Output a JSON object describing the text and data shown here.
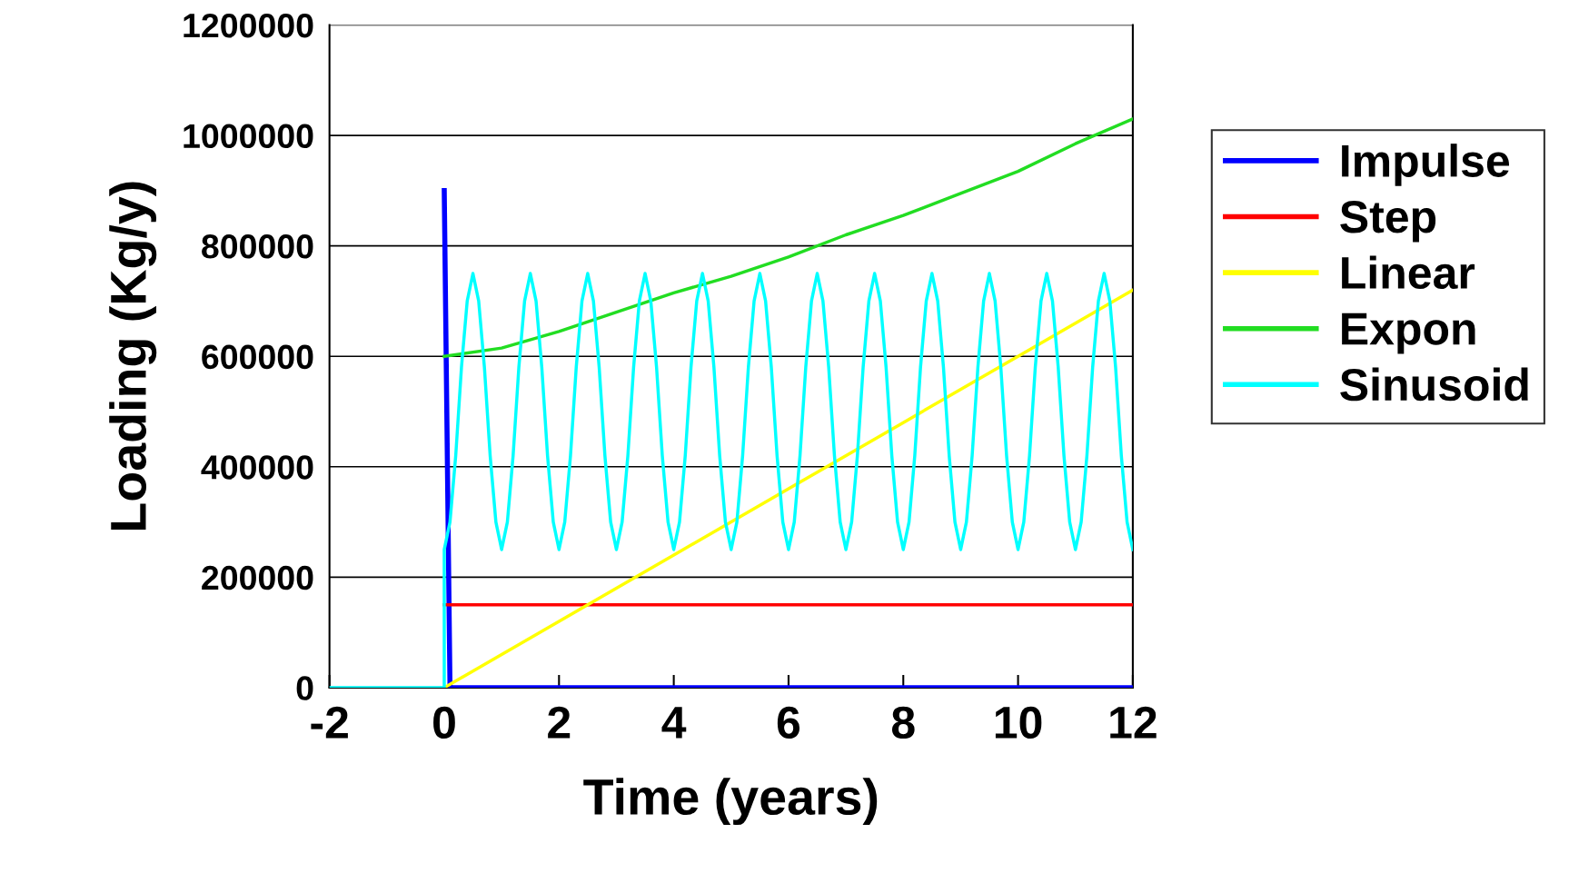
{
  "chart_data": {
    "type": "line",
    "xlabel": "Time (years)",
    "ylabel": "Loading (Kg/y)",
    "xlim": [
      -2,
      12
    ],
    "xticks": [
      -2,
      0,
      2,
      4,
      6,
      8,
      10,
      12
    ],
    "ylim": [
      0,
      1200000
    ],
    "yticks": [
      0,
      200000,
      400000,
      600000,
      800000,
      1000000,
      1200000
    ],
    "grid": "y",
    "legend": "right",
    "series": [
      {
        "name": "Impulse",
        "color": "#0000ff",
        "x": [
          0,
          0.1,
          12
        ],
        "values": [
          900000,
          0,
          0
        ]
      },
      {
        "name": "Step",
        "color": "#ff0000",
        "x": [
          0,
          12
        ],
        "values": [
          150000,
          150000
        ]
      },
      {
        "name": "Linear",
        "color": "#ffff00",
        "x": [
          0,
          2,
          4,
          6,
          8,
          10,
          12
        ],
        "values": [
          0,
          120000,
          240000,
          360000,
          480000,
          600000,
          720000
        ]
      },
      {
        "name": "Expon",
        "color": "#22dd22",
        "x": [
          0,
          1,
          2,
          3,
          4,
          5,
          6,
          7,
          8,
          9,
          10,
          11,
          12
        ],
        "values": [
          600000,
          615000,
          645000,
          680000,
          715000,
          745000,
          780000,
          820000,
          855000,
          895000,
          935000,
          985000,
          1030000
        ]
      },
      {
        "name": "Sinusoid",
        "color": "#00ffff",
        "x": [
          -2,
          0,
          0,
          0.1,
          0.2,
          0.3,
          0.4,
          0.5,
          0.6,
          0.7,
          0.8,
          0.9,
          1,
          1.1,
          1.2,
          1.3,
          1.4,
          1.5,
          1.6,
          1.7,
          1.8,
          1.9,
          2,
          2.1,
          2.2,
          2.3,
          2.4,
          2.5,
          2.6,
          2.7,
          2.8,
          2.9,
          3,
          3.1,
          3.2,
          3.3,
          3.4,
          3.5,
          3.6,
          3.7,
          3.8,
          3.9,
          4,
          4.1,
          4.2,
          4.3,
          4.4,
          4.5,
          4.6,
          4.7,
          4.8,
          4.9,
          5,
          5.1,
          5.2,
          5.3,
          5.4,
          5.5,
          5.6,
          5.7,
          5.8,
          5.9,
          6,
          6.1,
          6.2,
          6.3,
          6.4,
          6.5,
          6.6,
          6.7,
          6.8,
          6.9,
          7,
          7.1,
          7.2,
          7.3,
          7.4,
          7.5,
          7.6,
          7.7,
          7.8,
          7.9,
          8,
          8.1,
          8.2,
          8.3,
          8.4,
          8.5,
          8.6,
          8.7,
          8.8,
          8.9,
          9,
          9.1,
          9.2,
          9.3,
          9.4,
          9.5,
          9.6,
          9.7,
          9.8,
          9.9,
          10,
          10.1,
          10.2,
          10.3,
          10.4,
          10.5,
          10.6,
          10.7,
          10.8,
          10.9,
          11,
          11.1,
          11.2,
          11.3,
          11.4,
          11.5,
          11.6,
          11.7,
          11.8,
          11.9,
          12
        ],
        "values": [
          0,
          0,
          250000,
          300000,
          420000,
          580000,
          700000,
          750000,
          700000,
          580000,
          420000,
          300000,
          250000,
          300000,
          420000,
          580000,
          700000,
          750000,
          700000,
          580000,
          420000,
          300000,
          250000,
          300000,
          420000,
          580000,
          700000,
          750000,
          700000,
          580000,
          420000,
          300000,
          250000,
          300000,
          420000,
          580000,
          700000,
          750000,
          700000,
          580000,
          420000,
          300000,
          250000,
          300000,
          420000,
          580000,
          700000,
          750000,
          700000,
          580000,
          420000,
          300000,
          250000,
          300000,
          420000,
          580000,
          700000,
          750000,
          700000,
          580000,
          420000,
          300000,
          250000,
          300000,
          420000,
          580000,
          700000,
          750000,
          700000,
          580000,
          420000,
          300000,
          250000,
          300000,
          420000,
          580000,
          700000,
          750000,
          700000,
          580000,
          420000,
          300000,
          250000,
          300000,
          420000,
          580000,
          700000,
          750000,
          700000,
          580000,
          420000,
          300000,
          250000,
          300000,
          420000,
          580000,
          700000,
          750000,
          700000,
          580000,
          420000,
          300000,
          250000,
          300000,
          420000,
          580000,
          700000,
          750000,
          700000,
          580000,
          420000,
          300000,
          250000,
          300000,
          420000,
          580000,
          700000,
          750000,
          700000,
          580000,
          420000,
          300000,
          250000
        ]
      }
    ]
  }
}
